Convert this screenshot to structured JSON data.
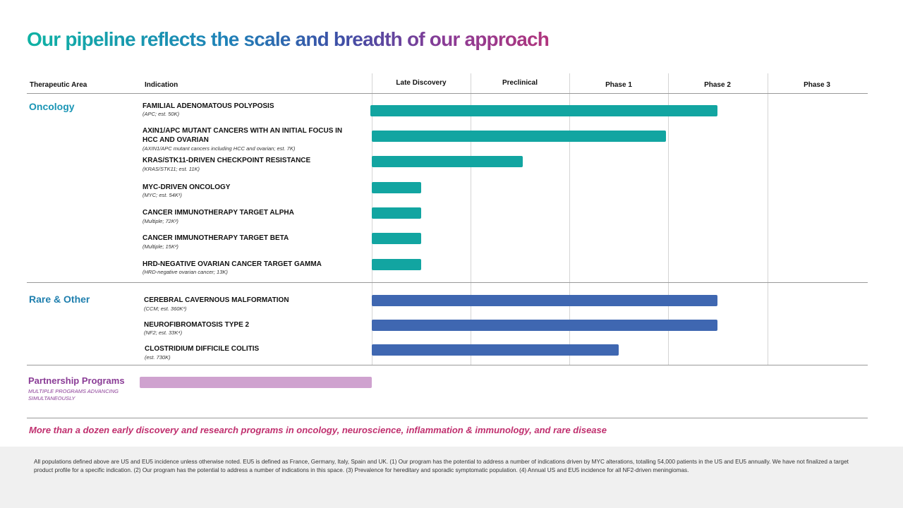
{
  "title": "Our pipeline reflects the scale and breadth of our approach",
  "headers": {
    "therapeutic_area": "Therapeutic  Area",
    "indication": "Indication"
  },
  "colors": {
    "oncology": "#12a5a1",
    "rare": "#3f67b1",
    "partnership": "#cfa2cf",
    "section_oncology": "#1a95b5",
    "section_rare": "#1f7fae",
    "section_partnership": "#8a3c96",
    "tagline": "#c02f6e"
  },
  "chart_data": {
    "type": "bar",
    "orientation": "horizontal",
    "title": "Our pipeline reflects the scale and breadth of our approach",
    "x_axis": {
      "categories": [
        "Late Discovery",
        "Preclinical",
        "Phase 1",
        "Phase 2",
        "Phase 3"
      ],
      "range": [
        0,
        5
      ],
      "unit": "stage progress"
    },
    "sections": [
      {
        "name": "Oncology",
        "color_key": "oncology",
        "items": [
          {
            "name": "FAMILIAL ADENOMATOUS POLYPOSIS",
            "sub": "(APC; est. 50K)",
            "value": 3.5
          },
          {
            "name": "AXIN1/APC MUTANT CANCERS WITH AN INITIAL FOCUS IN HCC AND OVARIAN",
            "sub": "(AXIN1/APC mutant cancers including HCC and ovarian; est. 7K)",
            "value": 2.98
          },
          {
            "name": "KRAS/STK11-DRIVEN CHECKPOINT RESISTANCE",
            "sub": "(KRAS/STK11; est. 11K)",
            "value": 1.53
          },
          {
            "name": "MYC-DRIVEN ONCOLOGY",
            "sub": "(MYC; est. 54K¹)",
            "value": 0.5
          },
          {
            "name": "CANCER IMMUNOTHERAPY TARGET ALPHA",
            "sub": "(Multiple; 72K²)",
            "value": 0.5
          },
          {
            "name": "CANCER IMMUNOTHERAPY TARGET BETA",
            "sub": "(Multiple; 15K²)",
            "value": 0.5
          },
          {
            "name": "HRD-NEGATIVE OVARIAN CANCER TARGET GAMMA",
            "sub": "(HRD-negative ovarian cancer; 13K)",
            "value": 0.5
          }
        ]
      },
      {
        "name": "Rare & Other",
        "color_key": "rare",
        "items": [
          {
            "name": "CEREBRAL CAVERNOUS MALFORMATION",
            "sub": "(CCM; est. 360K³)",
            "value": 3.5
          },
          {
            "name": "NEUROFIBROMATOSIS TYPE 2",
            "sub": "(NF2; est. 33K⁴)",
            "value": 3.5
          },
          {
            "name": "CLOSTRIDIUM DIFFICILE COLITIS",
            "sub": "(est. 730K)",
            "value": 2.5
          }
        ]
      }
    ],
    "partnership": {
      "name": "Partnership Programs",
      "sub": "MULTIPLE PROGRAMS ADVANCING SIMULTANEOUSLY",
      "spans": "Therapeutic Area through Indication columns"
    }
  },
  "tagline": "More than a dozen early discovery and research programs in oncology, neuroscience, inflammation & immunology, and rare disease",
  "footnote": "All populations defined above are US and EU5 incidence unless otherwise noted. EU5 is defined as France, Germany, Italy, Spain and UK. (1) Our program has the potential to address a number of indications driven by MYC alterations, totalling 54,000 patients in the US and EU5 annually. We have not finalized a target product profile for a specific indication. (2) Our program has the potential to address a number of indications in this space. (3) Prevalence for hereditary and sporadic symptomatic population. (4) Annual US and EU5 incidence for all NF2-driven meningiomas."
}
